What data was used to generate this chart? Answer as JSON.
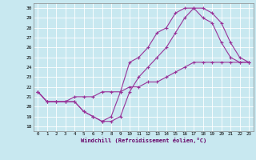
{
  "xlabel": "Windchill (Refroidissement éolien,°C)",
  "xlim": [
    -0.5,
    23.5
  ],
  "ylim": [
    17.5,
    30.5
  ],
  "xticks": [
    0,
    1,
    2,
    3,
    4,
    5,
    6,
    7,
    8,
    9,
    10,
    11,
    12,
    13,
    14,
    15,
    16,
    17,
    18,
    19,
    20,
    21,
    22,
    23
  ],
  "yticks": [
    18,
    19,
    20,
    21,
    22,
    23,
    24,
    25,
    26,
    27,
    28,
    29,
    30
  ],
  "bg_color": "#c8e8f0",
  "line_color": "#993399",
  "grid_color": "#ffffff",
  "line1_x": [
    0,
    1,
    2,
    3,
    4,
    5,
    6,
    7,
    8,
    9,
    10,
    11,
    12,
    13,
    14,
    15,
    16,
    17,
    18,
    19,
    20,
    21,
    22,
    23
  ],
  "line1_y": [
    21.5,
    20.5,
    20.5,
    20.5,
    20.5,
    19.5,
    19.0,
    18.5,
    18.5,
    19.0,
    21.5,
    23.0,
    24.0,
    25.0,
    26.0,
    27.5,
    29.0,
    30.0,
    30.0,
    29.5,
    28.5,
    26.5,
    25.0,
    24.5
  ],
  "line2_x": [
    0,
    1,
    2,
    3,
    4,
    5,
    6,
    7,
    8,
    9,
    10,
    11,
    12,
    13,
    14,
    15,
    16,
    17,
    18,
    19,
    20,
    21,
    22,
    23
  ],
  "line2_y": [
    21.5,
    20.5,
    20.5,
    20.5,
    21.0,
    21.0,
    21.0,
    21.5,
    21.5,
    21.5,
    22.0,
    22.0,
    22.5,
    22.5,
    23.0,
    23.5,
    24.0,
    24.5,
    24.5,
    24.5,
    24.5,
    24.5,
    24.5,
    24.5
  ],
  "line3_x": [
    0,
    1,
    2,
    3,
    4,
    5,
    6,
    7,
    8,
    9,
    10,
    11,
    12,
    13,
    14,
    15,
    16,
    17,
    18,
    19,
    20,
    21,
    22,
    23
  ],
  "line3_y": [
    21.5,
    20.5,
    20.5,
    20.5,
    20.5,
    19.5,
    19.0,
    18.5,
    19.0,
    21.5,
    24.5,
    25.0,
    26.0,
    27.5,
    28.0,
    29.5,
    30.0,
    30.0,
    29.0,
    28.5,
    26.5,
    25.0,
    24.5,
    24.5
  ]
}
